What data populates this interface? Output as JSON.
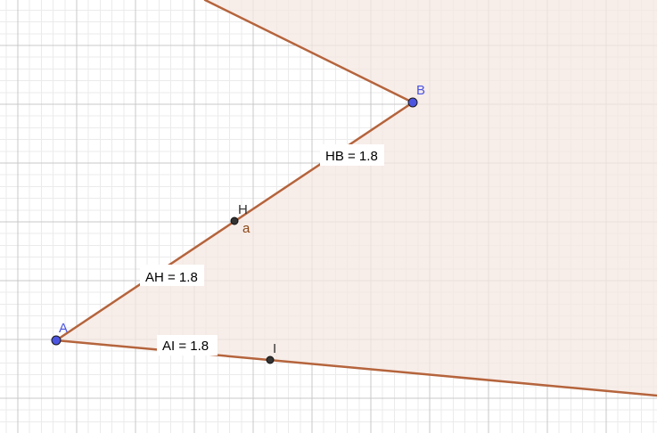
{
  "app": "Geometry graphing canvas",
  "colors": {
    "background": "#ffffff",
    "grid_major": "#c8c8c8",
    "grid_minor": "#ebebeb",
    "polygon_fill": "#f4e7e1",
    "segment": "#b5643c",
    "free_point": "#4c55e0",
    "free_point_label": "#4c55e0",
    "dependent_point": "#333333",
    "dependent_label": "#333333",
    "segment_name_label": "#8b4513",
    "label_bg": "#ffffff"
  },
  "points": {
    "A": {
      "name": "A",
      "type": "free"
    },
    "B": {
      "name": "B",
      "type": "free"
    },
    "H": {
      "name": "H",
      "type": "dependent"
    },
    "I": {
      "name": "I",
      "type": "dependent"
    }
  },
  "segment_names": {
    "a": "a"
  },
  "measurements": {
    "HB": "HB = 1.8",
    "AH": "AH = 1.8",
    "AI": "AI = 1.8"
  }
}
